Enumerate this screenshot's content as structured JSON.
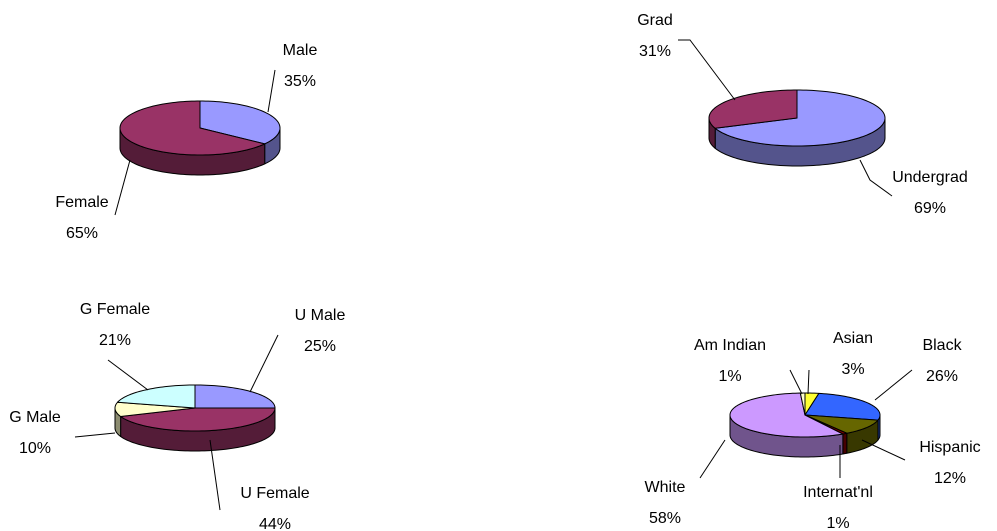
{
  "chart_data": [
    {
      "type": "pie",
      "categories": [
        "Male",
        "Female"
      ],
      "values": [
        35,
        65
      ],
      "value_labels": [
        "35%",
        "65%"
      ],
      "colors": [
        "#9999ff",
        "#993366"
      ]
    },
    {
      "type": "pie",
      "categories": [
        "Undergrad",
        "Grad"
      ],
      "values": [
        69,
        31
      ],
      "value_labels": [
        "69%",
        "31%"
      ],
      "colors": [
        "#9999ff",
        "#993366"
      ]
    },
    {
      "type": "pie",
      "categories": [
        "U Male",
        "U Female",
        "G Male",
        "G Female"
      ],
      "values": [
        25,
        44,
        10,
        21
      ],
      "value_labels": [
        "25%",
        "44%",
        "10%",
        "21%"
      ],
      "colors": [
        "#9999ff",
        "#993366",
        "#ffffcc",
        "#ccffff"
      ]
    },
    {
      "type": "pie",
      "categories": [
        "Asian",
        "Black",
        "Hispanic",
        "Internat'nl",
        "White",
        "Am Indian"
      ],
      "values": [
        3,
        26,
        12,
        1,
        58,
        1
      ],
      "value_labels": [
        "3%",
        "26%",
        "12%",
        "1%",
        "58%",
        "1%"
      ],
      "colors": [
        "#ffff33",
        "#3366ff",
        "#666600",
        "#800000",
        "#cc99ff",
        "#ffffcc"
      ]
    }
  ]
}
